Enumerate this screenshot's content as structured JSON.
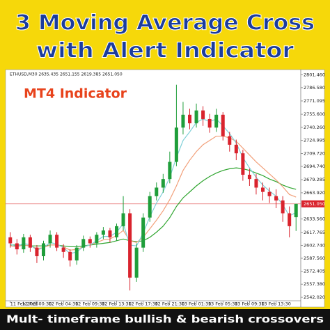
{
  "banner": {
    "title": [
      "3 Moving Average Cross",
      "with Alert Indicator"
    ],
    "footer": "Mult- timeframe bullish & bearish crossovers"
  },
  "chart_data": {
    "type": "candlestick",
    "label": "MT4 Indicator",
    "symbol_info": "ETHUSD,M30  2635.435 2651.155 2619.385 2651.050",
    "up_color": "#1f9e3a",
    "down_color": "#d9232d",
    "categories": [
      "11 Feb 2025",
      null,
      null,
      null,
      "12 Feb 00:30",
      null,
      null,
      null,
      "12 Feb 04:30",
      null,
      null,
      null,
      "12 Feb 09:30",
      null,
      null,
      null,
      "12 Feb 13:30",
      null,
      null,
      null,
      "12 Feb 17:30",
      null,
      null,
      null,
      "12 Feb 21:30",
      null,
      null,
      null,
      "13 Feb 01:30",
      null,
      null,
      null,
      "13 Feb 05:30",
      null,
      null,
      null,
      "13 Feb 09:30",
      null,
      null,
      null,
      "13 Feb 13:30",
      null,
      null,
      null
    ],
    "open": [
      2612,
      2605,
      2598,
      2612,
      2600,
      2590,
      2605,
      2615,
      2600,
      2595,
      2585,
      2600,
      2610,
      2605,
      2615,
      2620,
      2612,
      2625,
      2640,
      2565,
      2600,
      2635,
      2660,
      2670,
      2680,
      2700,
      2740,
      2755,
      2745,
      2760,
      2750,
      2740,
      2755,
      2730,
      2720,
      2710,
      2685,
      2680,
      2670,
      2665,
      2660,
      2655,
      2640,
      2635.435
    ],
    "high": [
      2618,
      2610,
      2616,
      2615,
      2603,
      2608,
      2620,
      2618,
      2604,
      2598,
      2603,
      2614,
      2613,
      2618,
      2624,
      2623,
      2628,
      2660,
      2645,
      2605,
      2640,
      2665,
      2676,
      2686,
      2712,
      2790,
      2770,
      2762,
      2768,
      2765,
      2756,
      2762,
      2758,
      2735,
      2726,
      2714,
      2692,
      2686,
      2676,
      2670,
      2668,
      2660,
      2648,
      2651.155
    ],
    "low": [
      2600,
      2592,
      2594,
      2595,
      2582,
      2585,
      2600,
      2596,
      2588,
      2578,
      2580,
      2596,
      2600,
      2600,
      2610,
      2606,
      2608,
      2620,
      2550,
      2560,
      2595,
      2630,
      2655,
      2664,
      2675,
      2695,
      2732,
      2738,
      2740,
      2742,
      2734,
      2735,
      2725,
      2712,
      2702,
      2678,
      2672,
      2662,
      2655,
      2652,
      2646,
      2630,
      2612,
      2619.385
    ],
    "close": [
      2605,
      2598,
      2612,
      2600,
      2590,
      2605,
      2615,
      2600,
      2595,
      2585,
      2600,
      2610,
      2605,
      2615,
      2620,
      2612,
      2625,
      2640,
      2565,
      2600,
      2635,
      2660,
      2670,
      2680,
      2700,
      2740,
      2755,
      2745,
      2760,
      2750,
      2740,
      2755,
      2730,
      2720,
      2710,
      2685,
      2680,
      2670,
      2665,
      2660,
      2655,
      2640,
      2625,
      2651.05
    ],
    "series": [
      {
        "color": "#2fa52f",
        "values": [
          2603,
          2603,
          2603,
          2602,
          2602,
          2602,
          2603,
          2603,
          2602,
          2601,
          2601,
          2602,
          2603,
          2604,
          2605,
          2606,
          2608,
          2610,
          2608,
          2607,
          2608,
          2612,
          2618,
          2625,
          2635,
          2648,
          2658,
          2665,
          2672,
          2678,
          2683,
          2687,
          2690,
          2692,
          2693,
          2692,
          2690,
          2687,
          2684,
          2680,
          2677,
          2673,
          2670,
          2668
        ]
      },
      {
        "color": "#f2a07a",
        "values": [
          2602,
          2601,
          2603,
          2602,
          2599,
          2600,
          2603,
          2603,
          2601,
          2597,
          2598,
          2601,
          2603,
          2606,
          2609,
          2610,
          2614,
          2620,
          2608,
          2606,
          2612,
          2622,
          2632,
          2643,
          2656,
          2672,
          2690,
          2702,
          2712,
          2720,
          2725,
          2730,
          2730,
          2728,
          2724,
          2716,
          2708,
          2700,
          2693,
          2686,
          2679,
          2671,
          2662,
          2659
        ]
      },
      {
        "color": "#7fd0d8",
        "values": [
          2604,
          2601,
          2605,
          2603,
          2597,
          2600,
          2606,
          2604,
          2600,
          2593,
          2595,
          2601,
          2603,
          2608,
          2613,
          2613,
          2618,
          2628,
          2603,
          2602,
          2617,
          2636,
          2652,
          2665,
          2682,
          2705,
          2725,
          2735,
          2746,
          2750,
          2747,
          2750,
          2742,
          2733,
          2722,
          2705,
          2693,
          2682,
          2673,
          2666,
          2660,
          2650,
          2637,
          2641
        ]
      }
    ],
    "last_price": {
      "value": 2651.05,
      "label": "2651.050"
    },
    "ylim": [
      2538,
      2806
    ],
    "yticks": [
      {
        "value": 2801.46,
        "label": "2801.460"
      },
      {
        "value": 2786.58,
        "label": "2786.580"
      },
      {
        "value": 2771.095,
        "label": "2771.095"
      },
      {
        "value": 2755.6,
        "label": "2755.600"
      },
      {
        "value": 2740.26,
        "label": "2740.260"
      },
      {
        "value": 2724.995,
        "label": "2724.995"
      },
      {
        "value": 2709.72,
        "label": "2709.720"
      },
      {
        "value": 2694.74,
        "label": "2694.740"
      },
      {
        "value": 2679.285,
        "label": "2679.285"
      },
      {
        "value": 2663.92,
        "label": "2663.920"
      },
      {
        "value": 2633.56,
        "label": "2633.560"
      },
      {
        "value": 2617.765,
        "label": "2617.765"
      },
      {
        "value": 2602.74,
        "label": "2602.740"
      },
      {
        "value": 2587.56,
        "label": "2587.560"
      },
      {
        "value": 2572.405,
        "label": "2572.405"
      },
      {
        "value": 2557.38,
        "label": "2557.380"
      },
      {
        "value": 2542.02,
        "label": "2542.020"
      }
    ]
  }
}
